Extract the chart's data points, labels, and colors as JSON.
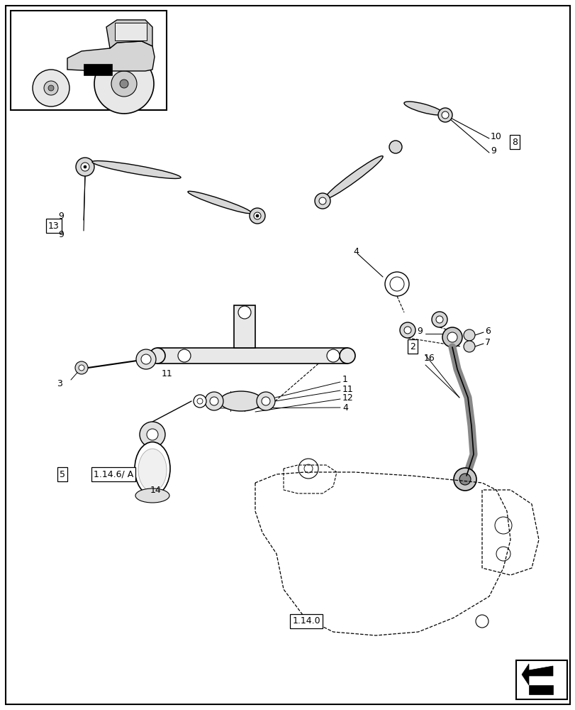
{
  "bg_color": "#ffffff",
  "line_color": "#000000",
  "fig_width": 8.12,
  "fig_height": 10.0,
  "dpi": 100
}
